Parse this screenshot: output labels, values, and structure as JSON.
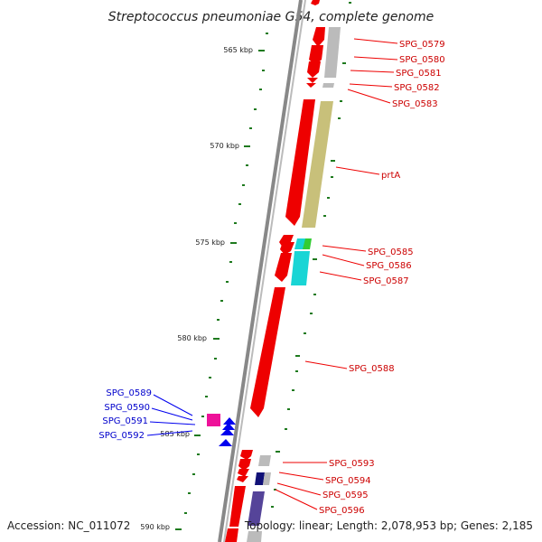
{
  "title": "Streptococcus pneumoniae G54, complete genome",
  "footer": {
    "accession": "Accession: NC_011072",
    "summary": "Topology: linear; Length: 2,078,953 bp; Genes: 2,185"
  },
  "colors": {
    "forward_strand": "#ee0000",
    "reverse_strand": "#0000ee",
    "backbone": "#888888",
    "tick": "#1e7a1e",
    "rna_gray": "#bbbbbb",
    "prtA_fill": "#c8c07a",
    "cyan_fill": "#19d5d5",
    "green_fill": "#33cc33",
    "magenta_fill": "#ee1199",
    "navy_fill": "#111177",
    "slate_fill": "#554499"
  },
  "ticks": [
    {
      "label": "565 kbp"
    },
    {
      "label": "570 kbp"
    },
    {
      "label": "575 kbp"
    },
    {
      "label": "580 kbp"
    },
    {
      "label": "585 kbp"
    },
    {
      "label": "590 kbp"
    }
  ],
  "genes": {
    "SPG_0579": "SPG_0579",
    "SPG_0580": "SPG_0580",
    "SPG_0581": "SPG_0581",
    "SPG_0582": "SPG_0582",
    "SPG_0583": "SPG_0583",
    "prtA": "prtA",
    "SPG_0585": "SPG_0585",
    "SPG_0586": "SPG_0586",
    "SPG_0587": "SPG_0587",
    "SPG_0588": "SPG_0588",
    "SPG_0589": "SPG_0589",
    "SPG_0590": "SPG_0590",
    "SPG_0591": "SPG_0591",
    "SPG_0592": "SPG_0592",
    "SPG_0593": "SPG_0593",
    "SPG_0594": "SPG_0594",
    "SPG_0595": "SPG_0595",
    "SPG_0596": "SPG_0596"
  }
}
